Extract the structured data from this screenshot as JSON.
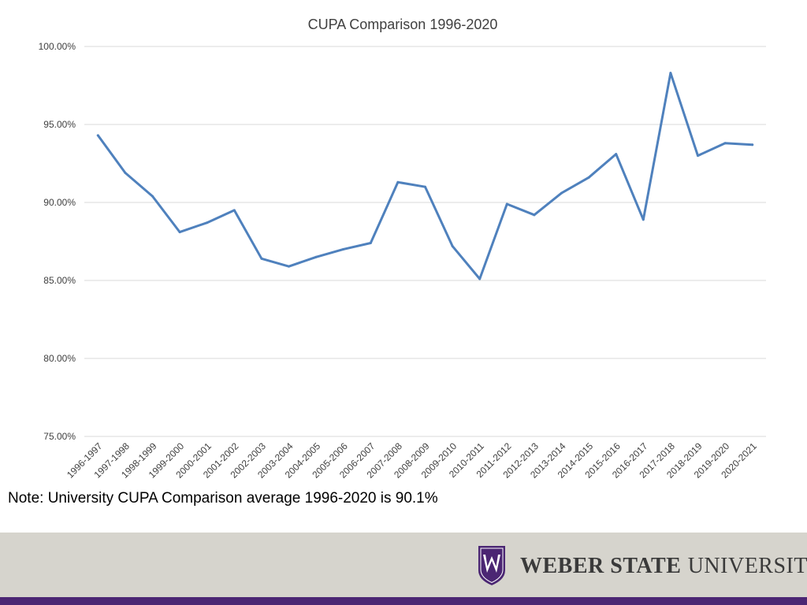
{
  "chart_data": {
    "type": "line",
    "title": "CUPA Comparison 1996-2020",
    "xlabel": "",
    "ylabel": "",
    "categories": [
      "1996-1997",
      "1997-1998",
      "1998-1999",
      "1999-2000",
      "2000-2001",
      "2001-2002",
      "2002-2003",
      "2003-2004",
      "2004-2005",
      "2005-2006",
      "2006-2007",
      "2007-2008",
      "2008-2009",
      "2009-2010",
      "2010-2011",
      "2011-2012",
      "2012-2013",
      "2013-2014",
      "2014-2015",
      "2015-2016",
      "2016-2017",
      "2017-2018",
      "2018-2019",
      "2019-2020",
      "2020-2021"
    ],
    "series": [
      {
        "name": "",
        "values": [
          94.3,
          91.9,
          90.4,
          88.1,
          88.7,
          89.5,
          86.4,
          85.9,
          86.5,
          87.0,
          87.4,
          91.3,
          91.0,
          87.2,
          85.1,
          89.9,
          89.2,
          90.6,
          91.6,
          93.1,
          88.9,
          98.3,
          93.0,
          93.8,
          93.7
        ]
      }
    ],
    "ylim": [
      75,
      100
    ],
    "y_ticks": [
      "100.00%",
      "95.00%",
      "90.00%",
      "85.00%",
      "80.00%",
      "75.00%"
    ],
    "y_tick_values": [
      100,
      95,
      90,
      85,
      80,
      75
    ],
    "grid": true,
    "legend": "none",
    "line_color": "#4f81bd"
  },
  "note": "Note: University CUPA Comparison average 1996-2020 is 90.1%",
  "footer": {
    "brand_strong": "WEBER STATE",
    "brand_light": "UNIVERSITY",
    "band_color": "#d6d4cd",
    "stripe_color": "#4b2673"
  }
}
